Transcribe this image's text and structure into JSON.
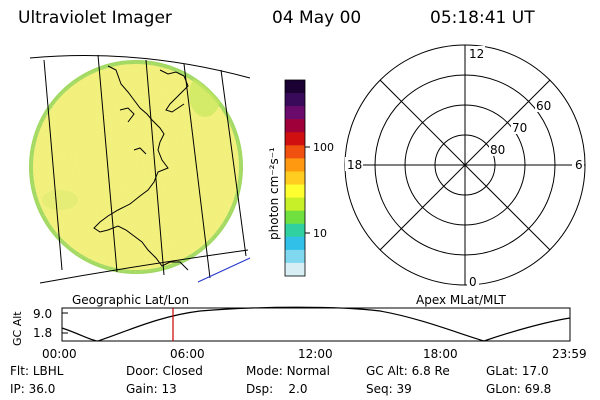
{
  "header": {
    "instrument": "Ultraviolet Imager",
    "date": "04 May 00",
    "time": "05:18:41 UT"
  },
  "colorbar": {
    "unit_label": "photon cm⁻²s⁻¹",
    "ticks": [
      "100",
      "10"
    ],
    "scale": "log",
    "colors_top_to_bottom": [
      "#1a0033",
      "#3a0a5a",
      "#6a0a6a",
      "#a0003a",
      "#d01010",
      "#f05010",
      "#ff9a10",
      "#ffcc20",
      "#ffff30",
      "#c8f028",
      "#70e040",
      "#30d0a0",
      "#30c0e8",
      "#80d8f0",
      "#d8eef5"
    ]
  },
  "left_panel": {
    "label": "Geographic Lat/Lon",
    "image_fill": "#f2f07a",
    "image_edge": "#9ed860"
  },
  "right_panel": {
    "label": "Apex MLat/MLT",
    "mlt_labels": {
      "top": "12",
      "bottom": "0",
      "left": "18",
      "right": "6"
    },
    "lat_labels": [
      "60",
      "70",
      "80"
    ]
  },
  "alt_plot": {
    "axis_label": "GC Alt",
    "y_ticks": [
      "9.0",
      "1.8"
    ],
    "x_ticks": [
      "00:00",
      "06:00",
      "12:00",
      "18:00",
      "23:59"
    ],
    "marker_color": "#cc0000"
  },
  "info": {
    "row1": [
      {
        "label": "Flt:",
        "value": "LBHL"
      },
      {
        "label": "Door:",
        "value": "Closed"
      },
      {
        "label": "Mode:",
        "value": "Normal"
      },
      {
        "label": "GC Alt:",
        "value": "6.8 Re"
      },
      {
        "label": "GLat:",
        "value": "17.0"
      }
    ],
    "row2": [
      {
        "label": "IP:",
        "value": "36.0"
      },
      {
        "label": "Gain:",
        "value": "13"
      },
      {
        "label": "Dsp:",
        "value": "2.0"
      },
      {
        "label": "Seq:",
        "value": "39"
      },
      {
        "label": "GLon:",
        "value": "69.8"
      }
    ]
  }
}
